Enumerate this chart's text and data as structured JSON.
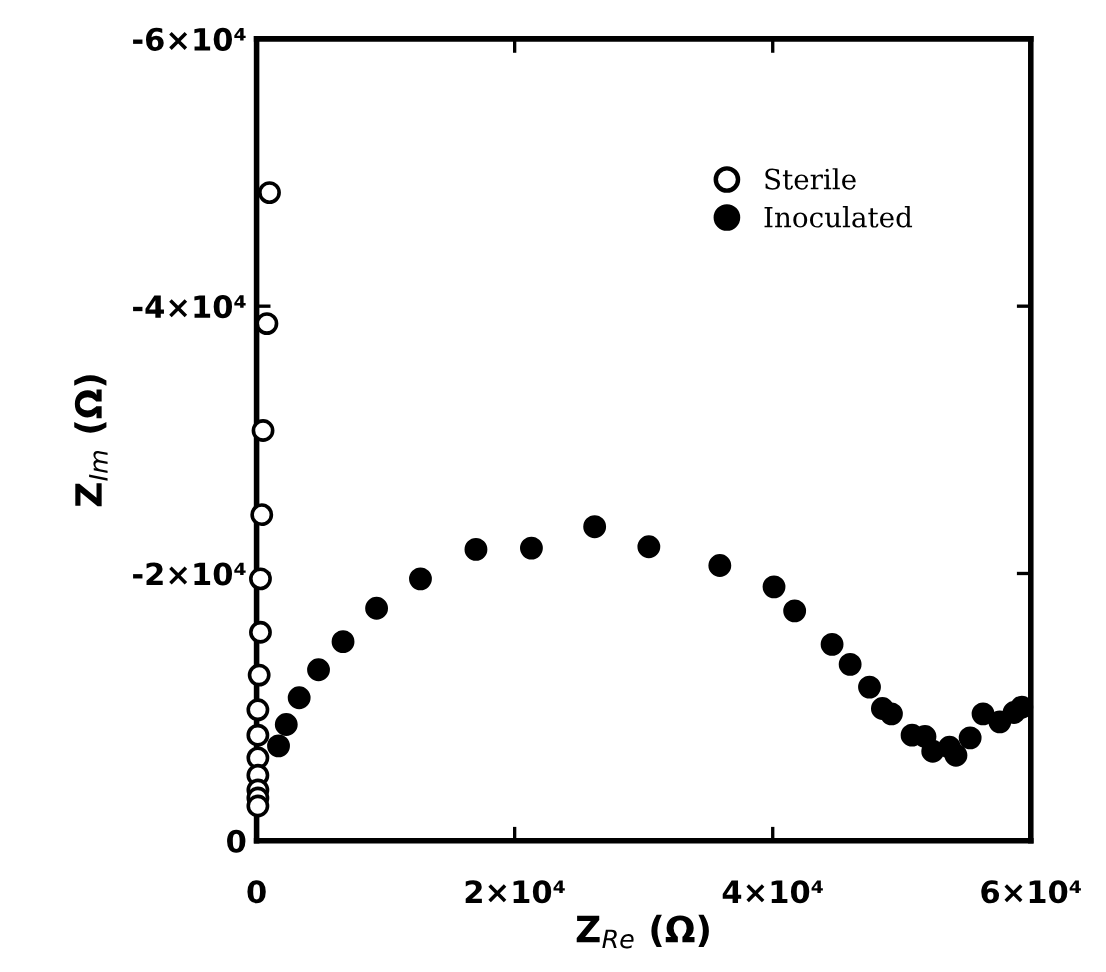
{
  "chart_data": {
    "type": "scatter",
    "xlabel": "Z$_{Re}$ (Ω)",
    "ylabel": "Z$_{Im}$ (Ω)",
    "xlim": [
      0,
      60000
    ],
    "ylim": [
      0,
      -60000
    ],
    "xticks": [
      0,
      {
        "value": 20000,
        "label": "2×10⁴"
      },
      {
        "value": 40000,
        "label": "4×10⁴"
      },
      {
        "value": 60000,
        "label": "6×10⁴"
      }
    ],
    "yticks": [
      0,
      {
        "value": -20000,
        "label": "-2×10⁴"
      },
      {
        "value": -40000,
        "label": "-4×10⁴"
      },
      {
        "value": -60000,
        "label": "-6×10⁴"
      }
    ],
    "grid": false,
    "legend": "top right",
    "marker": "circle",
    "series": [
      {
        "name": "Sterile",
        "color": "#ffffff",
        "x": [
          1000,
          800,
          500,
          400,
          300,
          300,
          200,
          100,
          100,
          100,
          100,
          100,
          100,
          100
        ],
        "values": [
          -48500,
          -38700,
          -30700,
          -24400,
          -19600,
          -15600,
          -12400,
          -9800,
          -7900,
          -6200,
          -4900,
          -3800,
          -3200,
          -2600
        ]
      },
      {
        "name": "Inoculated",
        "color": "#000000",
        "x": [
          1700,
          2300,
          3300,
          4800,
          6700,
          9300,
          12700,
          17000,
          21300,
          26200,
          30400,
          35900,
          40100,
          41700,
          44600,
          46000,
          47500,
          48500,
          49200,
          50800,
          51800,
          52400,
          53700,
          54200,
          55300,
          56300,
          57600,
          58700,
          59300
        ],
        "values": [
          -7100,
          -8700,
          -10700,
          -12800,
          -14900,
          -17400,
          -19600,
          -21800,
          -21900,
          -23500,
          -22000,
          -20600,
          -19000,
          -17200,
          -14700,
          -13200,
          -11500,
          -9900,
          -9500,
          -7900,
          -7800,
          -6700,
          -7000,
          -6400,
          -7700,
          -9500,
          -8900,
          -9600,
          -10000
        ]
      }
    ]
  }
}
